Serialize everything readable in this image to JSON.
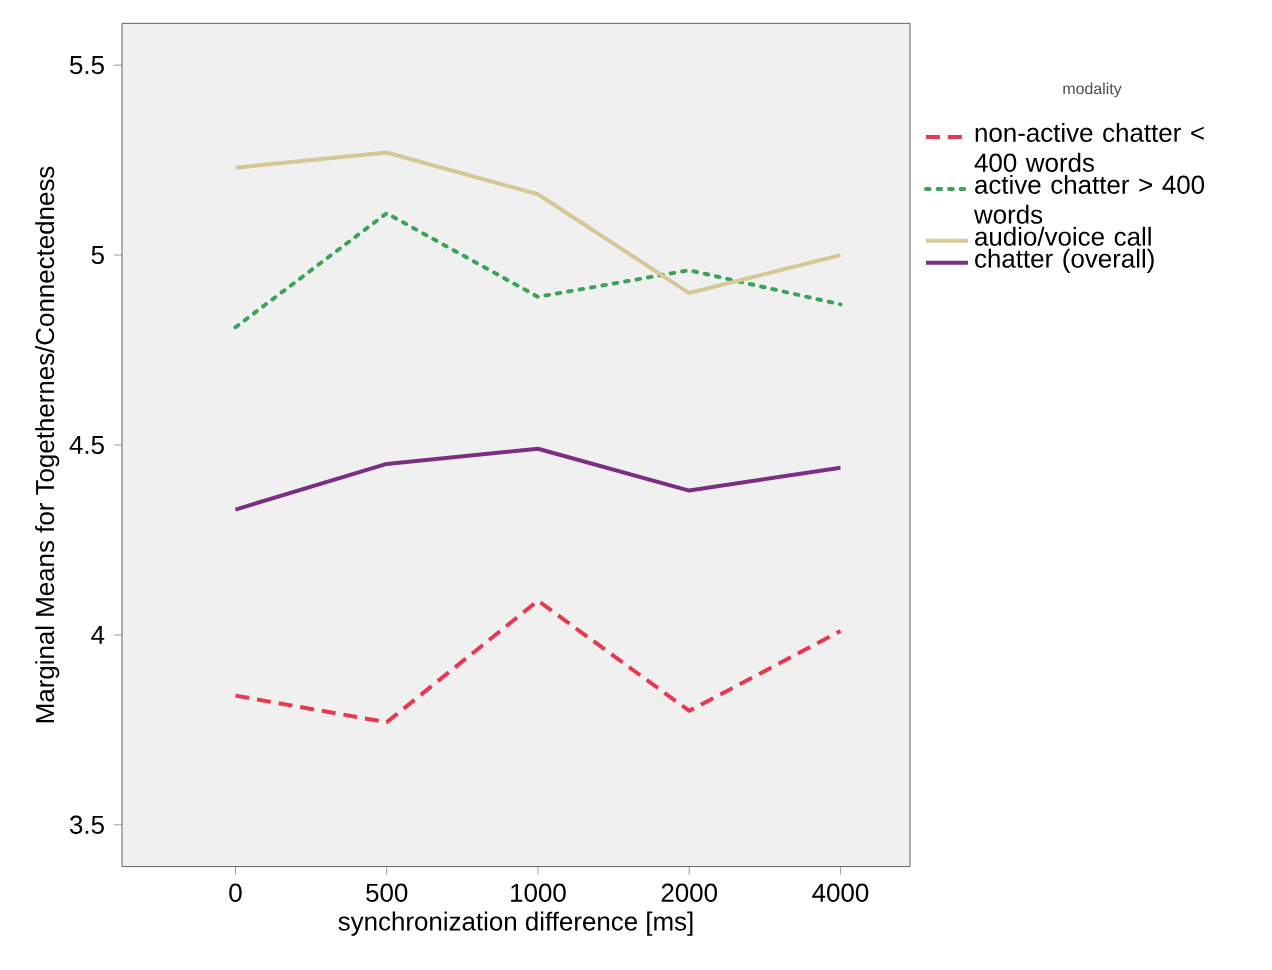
{
  "chart_data": {
    "type": "line",
    "xlabel": "synchronization difference [ms]",
    "ylabel": "Marginal Means for Togethernes/Connectedness",
    "legend_title": "modality",
    "legend": "right",
    "categories": [
      "0",
      "500",
      "1000",
      "2000",
      "4000"
    ],
    "ylim": [
      3.39,
      5.61
    ],
    "yticks": [
      3.5,
      4,
      4.5,
      5,
      5.5
    ],
    "series": [
      {
        "name": "non-active chatter < 400 words",
        "color": "#e8384f",
        "line_style": "dashed",
        "values": [
          3.84,
          3.77,
          4.09,
          3.8,
          4.01
        ]
      },
      {
        "name": "active chatter > 400 words",
        "color": "#3aa35a",
        "line_style": "dotted",
        "values": [
          4.81,
          5.11,
          4.89,
          4.96,
          4.87
        ]
      },
      {
        "name": "audio/voice call",
        "color": "#d4c896",
        "line_style": "solid",
        "values": [
          5.23,
          5.27,
          5.16,
          4.9,
          5.0
        ]
      },
      {
        "name": "chatter (overall)",
        "color": "#7b2f82",
        "line_style": "solid",
        "values": [
          4.33,
          4.45,
          4.49,
          4.38,
          4.44
        ]
      }
    ]
  }
}
